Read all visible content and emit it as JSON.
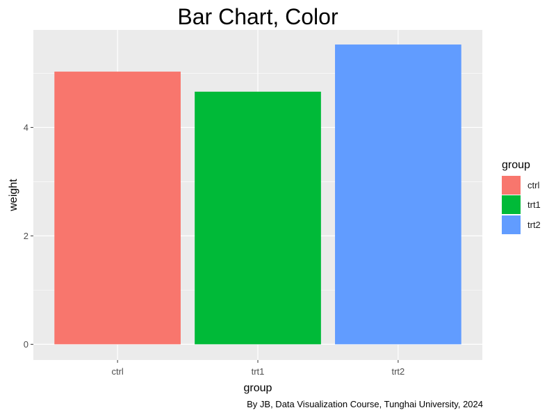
{
  "chart_data": {
    "type": "bar",
    "title": "Bar Chart, Color",
    "xlabel": "group",
    "ylabel": "weight",
    "categories": [
      "ctrl",
      "trt1",
      "trt2"
    ],
    "values": [
      5.03,
      4.66,
      5.53
    ],
    "colors": [
      "#F8766D",
      "#00BA38",
      "#619CFF"
    ],
    "ylim": [
      0,
      5.8
    ],
    "yticks": [
      0,
      2,
      4
    ],
    "grid": true,
    "panel_background": "#EBEBEB",
    "legend": {
      "title": "group",
      "position": "right",
      "items": [
        {
          "label": "ctrl",
          "color": "#F8766D"
        },
        {
          "label": "trt1",
          "color": "#00BA38"
        },
        {
          "label": "trt2",
          "color": "#619CFF"
        }
      ]
    },
    "caption": "By JB, Data Visualization Course, Tunghai University, 2024"
  }
}
